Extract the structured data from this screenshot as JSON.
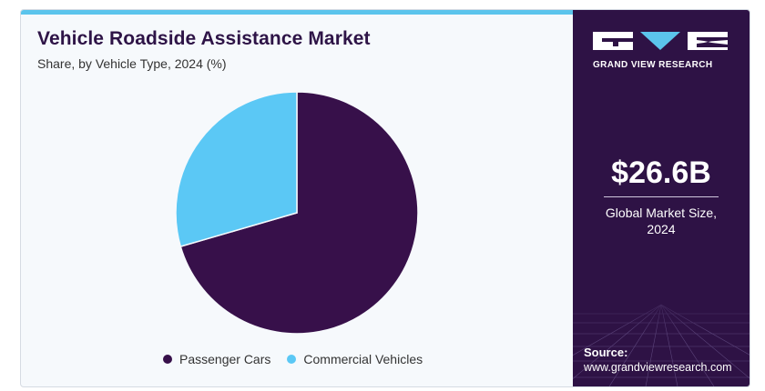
{
  "header": {
    "title": "Vehicle Roadside Assistance Market",
    "subtitle": "Share, by Vehicle Type, 2024 (%)"
  },
  "chart_data": {
    "type": "pie",
    "title": "Vehicle Roadside Assistance Market",
    "subtitle": "Share, by Vehicle Type, 2024 (%)",
    "categories": [
      "Passenger Cars",
      "Commercial Vehicles"
    ],
    "values": [
      70.5,
      29.5
    ],
    "colors": [
      "#37104a",
      "#5bc8f5"
    ],
    "legend_position": "bottom"
  },
  "sidebar": {
    "brand": "GRAND VIEW RESEARCH",
    "market_size": "$26.6B",
    "market_size_caption_line1": "Global Market Size,",
    "market_size_caption_line2": "2024",
    "source_label": "Source:",
    "source_url": "www.grandviewresearch.com"
  },
  "colors": {
    "accent": "#5bc4ec",
    "panel": "#2e1245",
    "title_text": "#2e1447"
  }
}
